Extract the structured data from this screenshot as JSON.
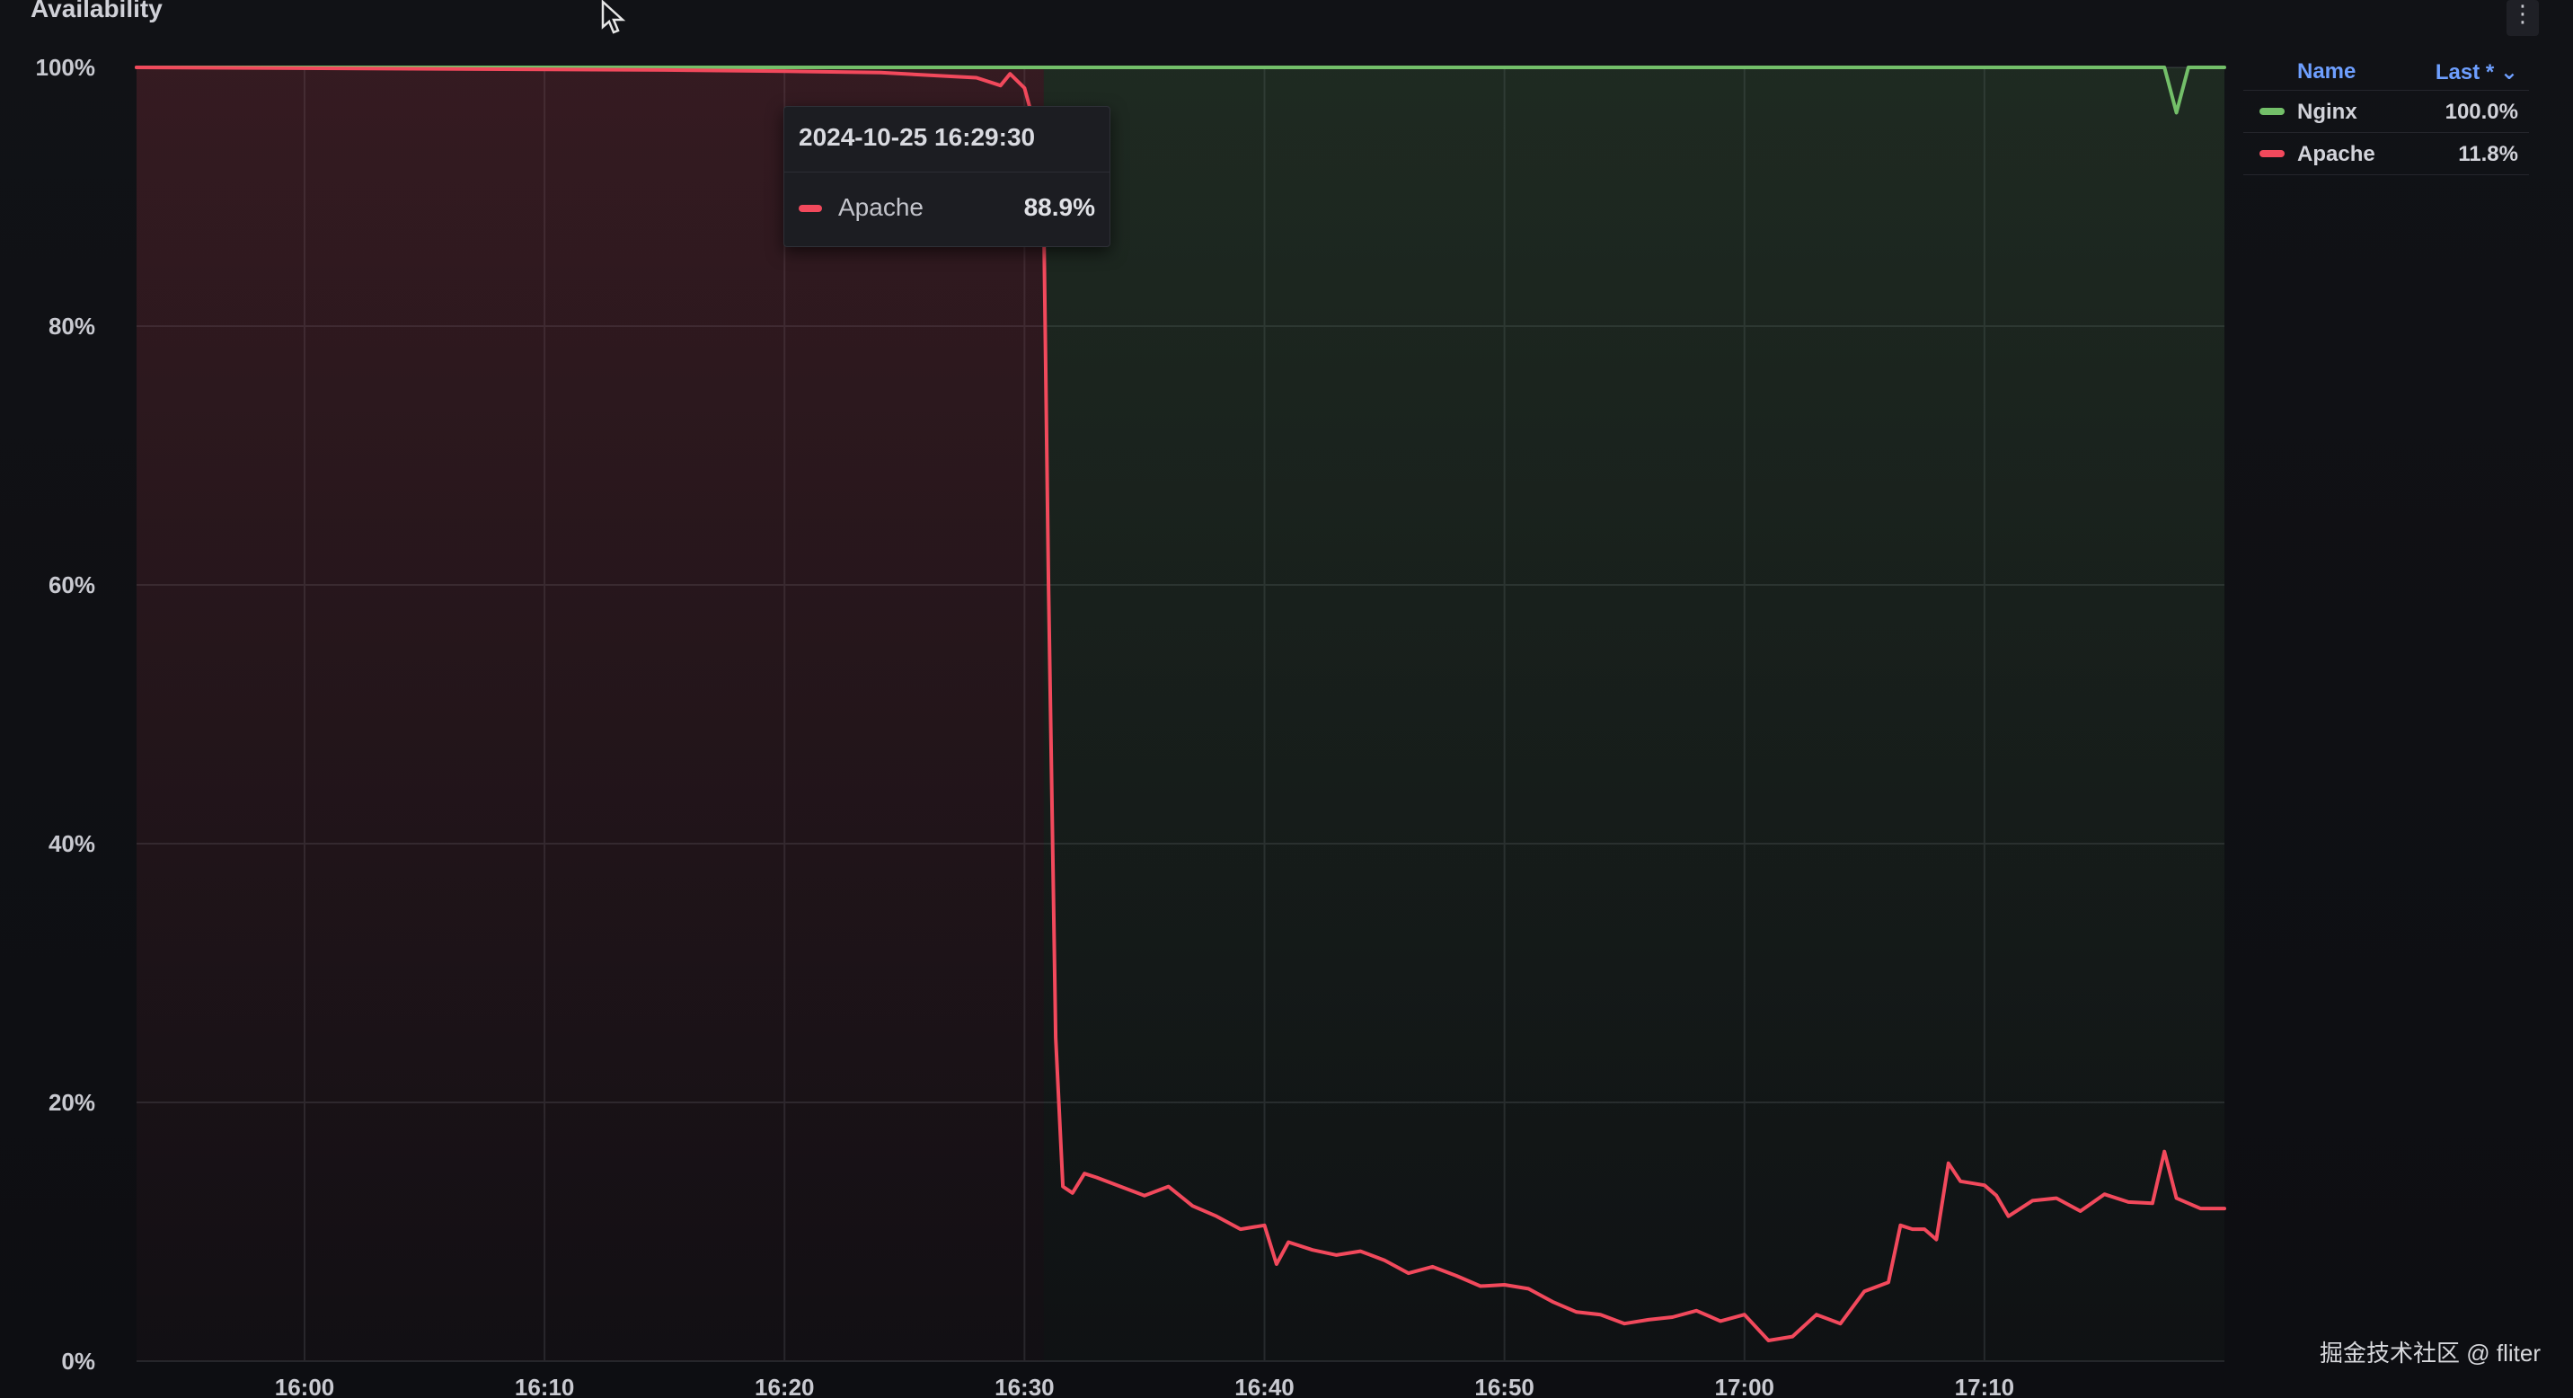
{
  "panel": {
    "title": "Availability",
    "menu_icon": "kebab-menu-icon",
    "cursor_icon": "mouse-pointer-icon"
  },
  "tooltip": {
    "time": "2024-10-25 16:29:30",
    "series": "Apache",
    "value": "88.9%",
    "color": "#f2495c"
  },
  "legend": {
    "header_name": "Name",
    "header_last": "Last * ⌄",
    "items": [
      {
        "name": "Nginx",
        "value": "100.0%",
        "color": "#73bf69"
      },
      {
        "name": "Apache",
        "value": "11.8%",
        "color": "#f2495c"
      }
    ]
  },
  "watermark": "掘金技术社区 @ fliter",
  "colors": {
    "nginx": "#73bf69",
    "apache": "#f2495c",
    "grid": "#24262b",
    "background": "#0e0f13"
  },
  "chart_data": {
    "type": "line",
    "title": "Availability",
    "xlabel": "",
    "ylabel": "",
    "ylim": [
      0,
      100
    ],
    "y_ticks": [
      "0%",
      "20%",
      "40%",
      "60%",
      "80%",
      "100%"
    ],
    "y_tick_values": [
      0,
      20,
      40,
      60,
      80,
      100
    ],
    "x_ticks": [
      "16:00",
      "16:10",
      "16:20",
      "16:30",
      "16:40",
      "16:50",
      "17:00",
      "17:10"
    ],
    "x_tick_minutes": [
      960,
      970,
      980,
      990,
      1000,
      1010,
      1020,
      1030
    ],
    "xlim_minutes": [
      953,
      1040
    ],
    "grid": true,
    "legend_position": "right",
    "series": [
      {
        "name": "Nginx",
        "color": "#73bf69",
        "x_minutes": [
          953,
          990,
          1030,
          1037.5,
          1038,
          1038.5,
          1040
        ],
        "values": [
          100,
          100,
          100,
          100,
          96.5,
          100,
          100
        ]
      },
      {
        "name": "Apache",
        "color": "#f2495c",
        "x_minutes": [
          953,
          975,
          980,
          984,
          988,
          989,
          989.4,
          990,
          990.5,
          990.8,
          991,
          991.3,
          991.6,
          992,
          992.5,
          993,
          994,
          995,
          996,
          997,
          998,
          999,
          1000,
          1000.5,
          1001,
          1002,
          1003,
          1004,
          1005,
          1006,
          1007,
          1008,
          1009,
          1010,
          1011,
          1012,
          1013,
          1014,
          1015,
          1016,
          1017,
          1018,
          1019,
          1020,
          1021,
          1022,
          1023,
          1024,
          1025,
          1026,
          1026.5,
          1027,
          1027.5,
          1028,
          1028.5,
          1029,
          1030,
          1030.5,
          1031,
          1032,
          1033,
          1034,
          1035,
          1036,
          1037,
          1037.5,
          1038,
          1039,
          1040
        ],
        "values": [
          100,
          99.8,
          99.7,
          99.6,
          99.2,
          98.6,
          99.5,
          98.4,
          95,
          88.9,
          60,
          25,
          13.5,
          13,
          14.5,
          14.2,
          13.5,
          12.8,
          13.5,
          12,
          11.2,
          10.2,
          10.5,
          7.5,
          9.2,
          8.6,
          8.2,
          8.5,
          7.8,
          6.8,
          7.3,
          6.6,
          5.8,
          5.9,
          5.6,
          4.6,
          3.8,
          3.6,
          2.9,
          3.2,
          3.4,
          3.9,
          3.1,
          3.6,
          1.6,
          1.9,
          3.6,
          2.9,
          5.4,
          6.1,
          10.5,
          10.2,
          10.2,
          9.4,
          15.3,
          13.9,
          13.6,
          12.8,
          11.2,
          12.4,
          12.6,
          11.6,
          12.9,
          12.3,
          12.2,
          16.2,
          12.6,
          11.8,
          11.8
        ]
      }
    ]
  }
}
